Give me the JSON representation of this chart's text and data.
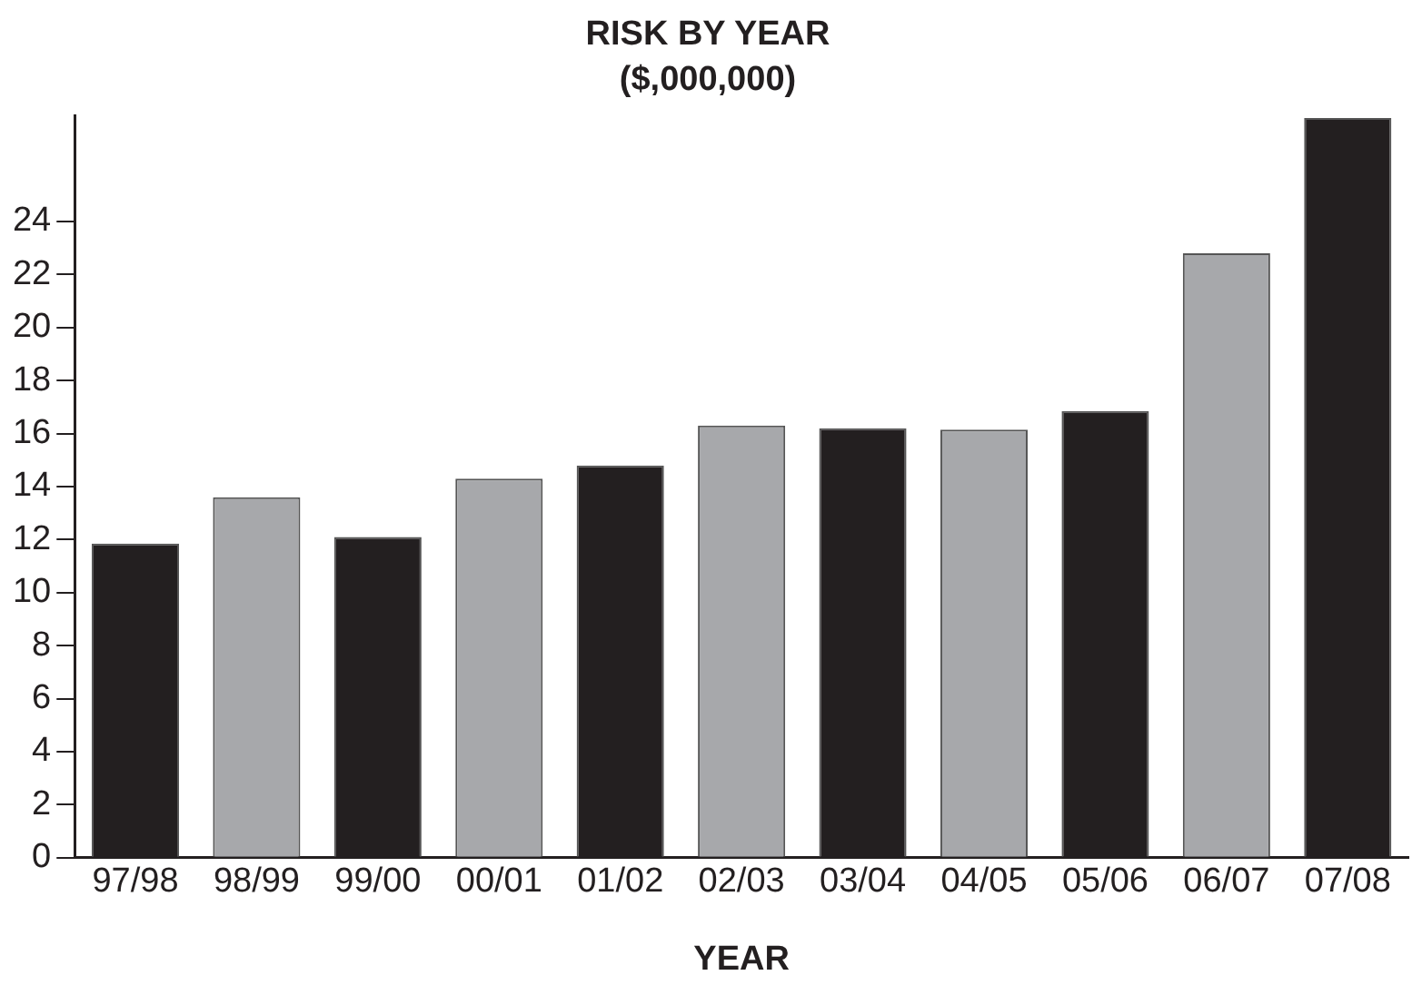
{
  "chart_data": {
    "type": "bar",
    "title": "RISK BY YEAR",
    "subtitle": "($,000,000)",
    "xlabel": "YEAR",
    "categories": [
      "97/98",
      "98/99",
      "99/00",
      "00/01",
      "01/02",
      "02/03",
      "03/04",
      "04/05",
      "05/06",
      "06/07",
      "07/08"
    ],
    "values": [
      11.85,
      13.6,
      12.1,
      14.3,
      14.8,
      16.3,
      16.2,
      16.15,
      16.85,
      22.8,
      27.9
    ],
    "colors": [
      "#231f20",
      "#a7a8ab",
      "#231f20",
      "#a7a8ab",
      "#231f20",
      "#a7a8ab",
      "#231f20",
      "#a7a8ab",
      "#231f20",
      "#a7a8ab",
      "#231f20"
    ],
    "ylim": [
      0,
      28
    ],
    "yticks": [
      0,
      2,
      4,
      6,
      8,
      10,
      12,
      14,
      16,
      18,
      20,
      22,
      24
    ],
    "grid": false,
    "legend": false
  }
}
